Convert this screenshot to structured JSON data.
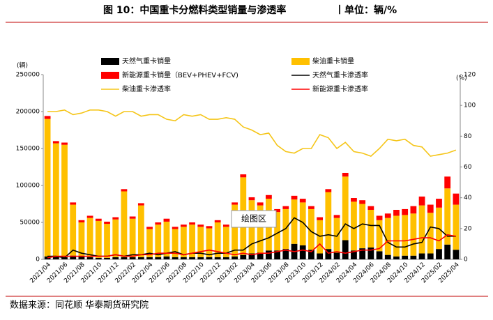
{
  "header": {
    "title": "图 10：中国重卡分燃料类型销量与渗透率",
    "unit": "丨单位：辆/%"
  },
  "source": "数据来源：同花顺 华泰期货研究院",
  "chart_data": {
    "type": "bar",
    "y_label": "(辆)",
    "y2_label": "(%)",
    "annotations": [
      "绘图区"
    ],
    "categories": [
      "2021/04",
      null,
      "2021/06",
      null,
      "2021/08",
      null,
      "2021/10",
      null,
      "2021/12",
      null,
      "2022/02",
      null,
      "2022/04",
      null,
      "2022/06",
      null,
      "2022/08",
      null,
      "2022/10",
      null,
      "2022/12",
      null,
      "2023/02",
      null,
      "2023/04",
      null,
      "2023/06",
      null,
      "2023/08",
      null,
      "2023/10",
      null,
      "2023/12",
      null,
      "2024/02",
      null,
      "2024/04",
      null,
      "2024/06",
      null,
      "2024/08",
      null,
      "2024/10",
      null,
      "2024/12",
      null,
      "2025/02",
      null,
      "2025/04"
    ],
    "ylim": [
      0,
      250000
    ],
    "yticks": [
      0,
      50000,
      100000,
      150000,
      200000,
      250000
    ],
    "y2lim": [
      0,
      120
    ],
    "y2ticks": [
      0,
      20,
      40,
      60,
      80,
      100,
      120
    ],
    "series": [
      {
        "name": "天然气重卡销量",
        "type": "bar",
        "color": "#000000",
        "values": [
          4000,
          4000,
          3000,
          5000,
          4000,
          3000,
          2000,
          2000,
          3000,
          3000,
          3000,
          3000,
          3000,
          3000,
          4000,
          3000,
          3000,
          3000,
          3000,
          3000,
          3000,
          3000,
          4000,
          6000,
          8000,
          9000,
          12000,
          12000,
          14000,
          21000,
          19000,
          13000,
          8000,
          14000,
          9000,
          26000,
          12000,
          15000,
          16000,
          11000,
          6000,
          4000,
          5000,
          5000,
          8000,
          8000,
          14000,
          20000,
          13000
        ]
      },
      {
        "name": "柴油重卡销量",
        "type": "bar",
        "color": "#FFC000",
        "values": [
          186000,
          153000,
          152000,
          69000,
          46000,
          53000,
          50000,
          46000,
          51000,
          89000,
          52000,
          70000,
          38000,
          44000,
          47000,
          38000,
          41000,
          44000,
          41000,
          39000,
          47000,
          41000,
          70000,
          105000,
          72000,
          64000,
          70000,
          52000,
          54000,
          60000,
          58000,
          55000,
          45000,
          77000,
          47000,
          86000,
          66000,
          60000,
          51000,
          42000,
          50000,
          55000,
          55000,
          57000,
          65000,
          55000,
          56000,
          76000,
          61000
        ]
      },
      {
        "name": "新能源重卡销量（BEV+PHEV+FCV)",
        "type": "bar",
        "color": "#FF0000",
        "values": [
          4000,
          3000,
          3000,
          3000,
          3000,
          3000,
          3000,
          3000,
          3000,
          3000,
          3000,
          3000,
          3000,
          3000,
          4000,
          3000,
          3000,
          3000,
          3000,
          3000,
          3000,
          3000,
          3000,
          4000,
          4000,
          4000,
          5000,
          4000,
          4000,
          5000,
          5000,
          4000,
          4000,
          4000,
          4000,
          5000,
          5000,
          5000,
          5000,
          6000,
          6000,
          8000,
          8000,
          10000,
          12000,
          11000,
          12000,
          16000,
          15000
        ]
      },
      {
        "name": "天然气重卡渗透率",
        "type": "line",
        "axis": "y2",
        "color": "#000000",
        "values": [
          2,
          2,
          1,
          6,
          4,
          3,
          2,
          2,
          3,
          2,
          3,
          3,
          4,
          3,
          4,
          5,
          3,
          4,
          4,
          3,
          4,
          4,
          6,
          6,
          10,
          12,
          14,
          17,
          20,
          27,
          24,
          18,
          15,
          16,
          15,
          23,
          20,
          23,
          22,
          22,
          11,
          8,
          8,
          10,
          11,
          21,
          20,
          15,
          15
        ]
      },
      {
        "name": "柴油重卡渗透率",
        "type": "line",
        "axis": "y2",
        "color": "#F5C518",
        "values": [
          96,
          96,
          97,
          94,
          95,
          97,
          97,
          96,
          93,
          96,
          96,
          93,
          94,
          94,
          91,
          90,
          94,
          93,
          94,
          91,
          91,
          92,
          91,
          86,
          84,
          81,
          82,
          74,
          70,
          69,
          72,
          72,
          81,
          79,
          72,
          76,
          70,
          69,
          67,
          72,
          78,
          77,
          78,
          74,
          73,
          67,
          68,
          69,
          71
        ]
      },
      {
        "name": "新能源重卡渗透率",
        "type": "line",
        "axis": "y2",
        "color": "#FF0000",
        "values": [
          1,
          2,
          2,
          2,
          2,
          2,
          2,
          2,
          3,
          2,
          2,
          3,
          3,
          4,
          4,
          4,
          3,
          4,
          5,
          6,
          5,
          4,
          3,
          4,
          3,
          4,
          4,
          5,
          6,
          5,
          6,
          5,
          10,
          4,
          5,
          4,
          5,
          6,
          6,
          7,
          12,
          12,
          12,
          13,
          14,
          14,
          12,
          16,
          15
        ]
      }
    ]
  }
}
